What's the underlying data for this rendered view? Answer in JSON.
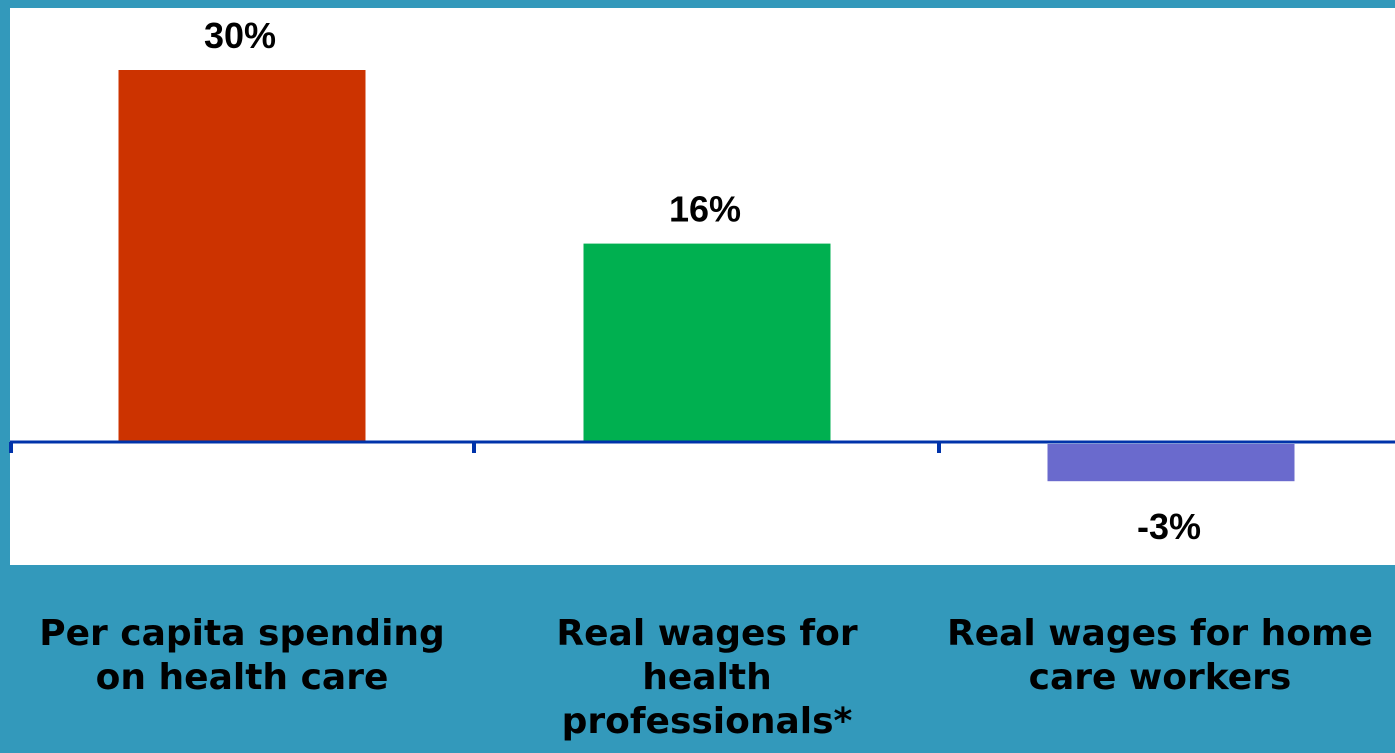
{
  "chart_data": {
    "type": "bar",
    "categories": [
      "Per capita spending on health care",
      "Real wages for health professionals*",
      "Real wages for home care workers"
    ],
    "category_label_lines": [
      [
        "Per capita spending",
        "on health care"
      ],
      [
        "Real wages for",
        "health",
        "professionals*"
      ],
      [
        "Real wages for home",
        "care workers"
      ]
    ],
    "values": [
      30,
      16,
      -3
    ],
    "value_labels": [
      "30%",
      "16%",
      "-3%"
    ],
    "colors": [
      "#CC3300",
      "#00B050",
      "#6A6ACD"
    ],
    "ylim": [
      -10,
      35
    ],
    "grid": false,
    "legend": "none",
    "title": "",
    "xlabel": "",
    "ylabel": ""
  },
  "style": {
    "background": "#3399BB",
    "plot_background": "#FFFFFF",
    "axis_color": "#0033AA"
  }
}
